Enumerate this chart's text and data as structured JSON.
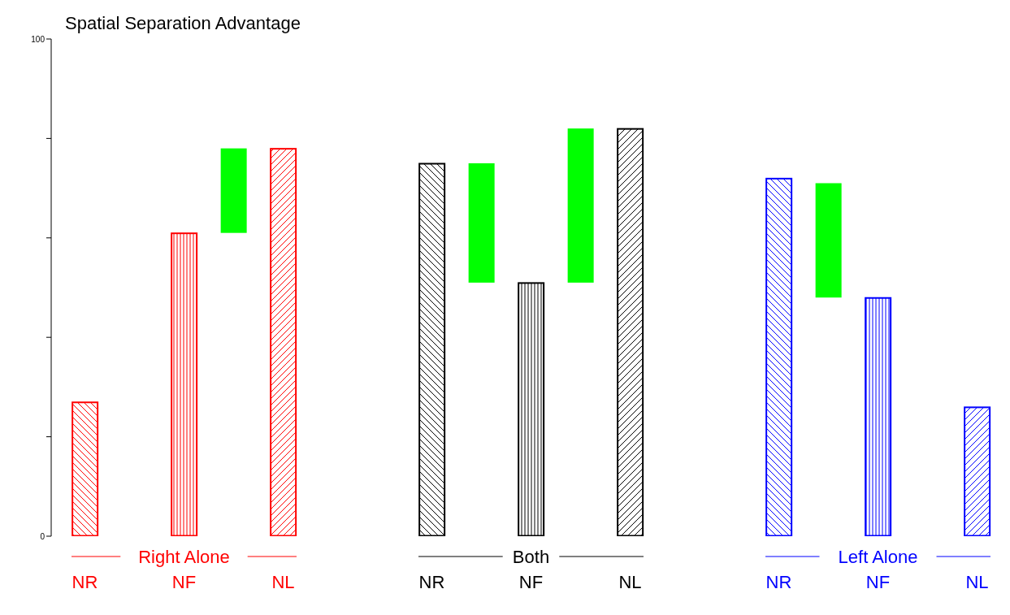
{
  "chart_data": {
    "type": "bar",
    "title": "Spatial Separation Advantage",
    "categories": [
      "NR",
      null,
      "NF",
      null,
      "NL",
      null,
      null,
      "NR",
      null,
      "NF",
      null,
      "NL",
      null,
      null,
      "NR",
      null,
      "NF",
      null,
      "NL"
    ],
    "series": [
      {
        "name": "Right Alone",
        "color": "#ff0000",
        "values": [
          27,
          null,
          61,
          null,
          78,
          null,
          null,
          null,
          null,
          null,
          null,
          null,
          null,
          null,
          null,
          null,
          null,
          null,
          null
        ]
      },
      {
        "name": "Both",
        "color": "#000000",
        "values": [
          null,
          null,
          null,
          null,
          null,
          null,
          null,
          75,
          null,
          51,
          null,
          82,
          null,
          null,
          null,
          null,
          null,
          null,
          null
        ]
      },
      {
        "name": "Left Alone",
        "color": "#0000ff",
        "values": [
          null,
          null,
          null,
          null,
          null,
          null,
          null,
          null,
          null,
          null,
          null,
          null,
          null,
          null,
          72,
          null,
          48,
          null,
          26
        ]
      },
      {
        "color": "#00ff00",
        "values": [
          null,
          null,
          null,
          17,
          null,
          null,
          null,
          null,
          24,
          null,
          31,
          null,
          null,
          null,
          null,
          23,
          null,
          null,
          null
        ],
        "base": [
          null,
          null,
          null,
          61,
          null,
          null,
          null,
          null,
          51,
          null,
          51,
          null,
          null,
          null,
          null,
          48,
          null,
          null,
          null
        ]
      }
    ],
    "ylim": [
      0,
      100
    ],
    "yticks": [
      0,
      {
        "value": 20,
        "label": null
      },
      {
        "value": 40,
        "label": null
      },
      {
        "value": 60,
        "label": null
      },
      {
        "value": 80,
        "label": null
      },
      100
    ],
    "grid": false
  }
}
